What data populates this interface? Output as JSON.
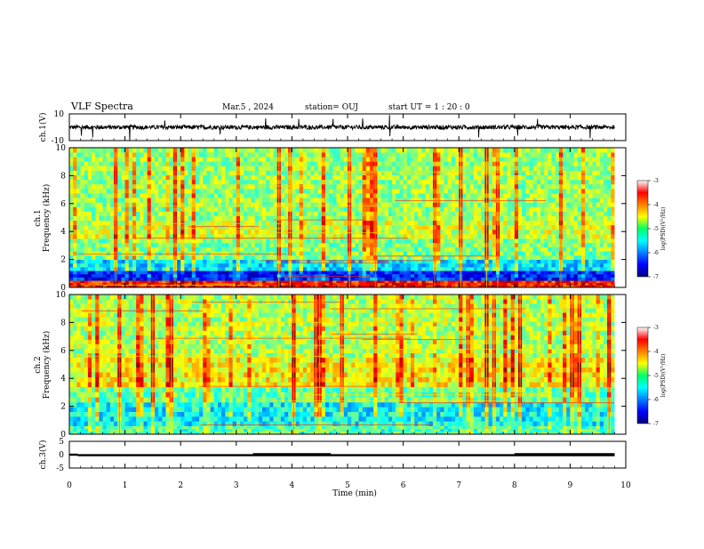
{
  "header": {
    "title": "VLF Spectra",
    "date": "Mar.5 , 2024",
    "station": "station= OUJ",
    "start": "start UT = 1 : 20 : 0"
  },
  "chart_data": [
    {
      "type": "line",
      "panel": "ch1-waveform",
      "ylabel": "ch.1(V)",
      "yticks": [
        "10",
        "-10"
      ],
      "ylim": [
        -10,
        10
      ],
      "x_range_min": [
        0,
        9.8
      ],
      "baseline_V": 0,
      "note": "noise band roughly -2 to +2 V with isolated impulsive spikes"
    },
    {
      "type": "heatmap",
      "panel": "ch1-spectrogram",
      "ylabel": "ch.1 Frequency (kHz)",
      "ylim": [
        0,
        10
      ],
      "yticks": [
        "0",
        "2",
        "4",
        "6",
        "8",
        "10"
      ],
      "colorbar": {
        "label": "log(PSD)(V²/Hz)",
        "range": [
          -7,
          -3
        ],
        "ticks": [
          "-3",
          "-4",
          "-5",
          "-6",
          "-7"
        ]
      },
      "bands_kHz": [
        {
          "f": [
            0,
            0.5
          ],
          "level": -3.6
        },
        {
          "f": [
            0.5,
            1.2
          ],
          "level": -6.4
        },
        {
          "f": [
            1.2,
            2.0
          ],
          "level": -5.6
        },
        {
          "f": [
            2.0,
            3.5
          ],
          "level": -5.0
        },
        {
          "f": [
            3.5,
            4.8
          ],
          "level": -4.7
        },
        {
          "f": [
            4.8,
            10
          ],
          "level": -4.9
        }
      ]
    },
    {
      "type": "heatmap",
      "panel": "ch2-spectrogram",
      "ylabel": "ch.2 Frequency (kHz)",
      "ylim": [
        0,
        10
      ],
      "yticks": [
        "0",
        "2",
        "4",
        "6",
        "8",
        "10"
      ],
      "colorbar": {
        "label": "log(PSD)(V²/Hz)",
        "range": [
          -7,
          -3
        ],
        "ticks": [
          "-3",
          "-4",
          "-5",
          "-6",
          "-7"
        ]
      },
      "bands_kHz": [
        {
          "f": [
            0,
            0.6
          ],
          "level": -5.2
        },
        {
          "f": [
            0.6,
            2.3
          ],
          "level": -5.5
        },
        {
          "f": [
            2.3,
            3.4
          ],
          "level": -5.1
        },
        {
          "f": [
            3.4,
            5.5
          ],
          "level": -4.5
        },
        {
          "f": [
            5.5,
            10
          ],
          "level": -4.8
        }
      ]
    },
    {
      "type": "line",
      "panel": "ch3-level",
      "ylabel": "ch.3(V)",
      "ylim": [
        -5,
        5
      ],
      "yticks": [
        "5",
        "0",
        "-5"
      ],
      "segments": [
        {
          "x": [
            0.0,
            0.15
          ],
          "y": 0
        },
        {
          "x": [
            0.15,
            9.8
          ],
          "y": -0.2
        },
        {
          "x": [
            3.3,
            4.7
          ],
          "y": 0.2
        },
        {
          "x": [
            8.0,
            9.8
          ],
          "y": 0.2
        }
      ]
    }
  ],
  "xaxis": {
    "label": "Time (min)",
    "range": [
      0,
      10
    ],
    "ticks": [
      "0",
      "1",
      "2",
      "3",
      "4",
      "5",
      "6",
      "7",
      "8",
      "9",
      "10"
    ]
  }
}
